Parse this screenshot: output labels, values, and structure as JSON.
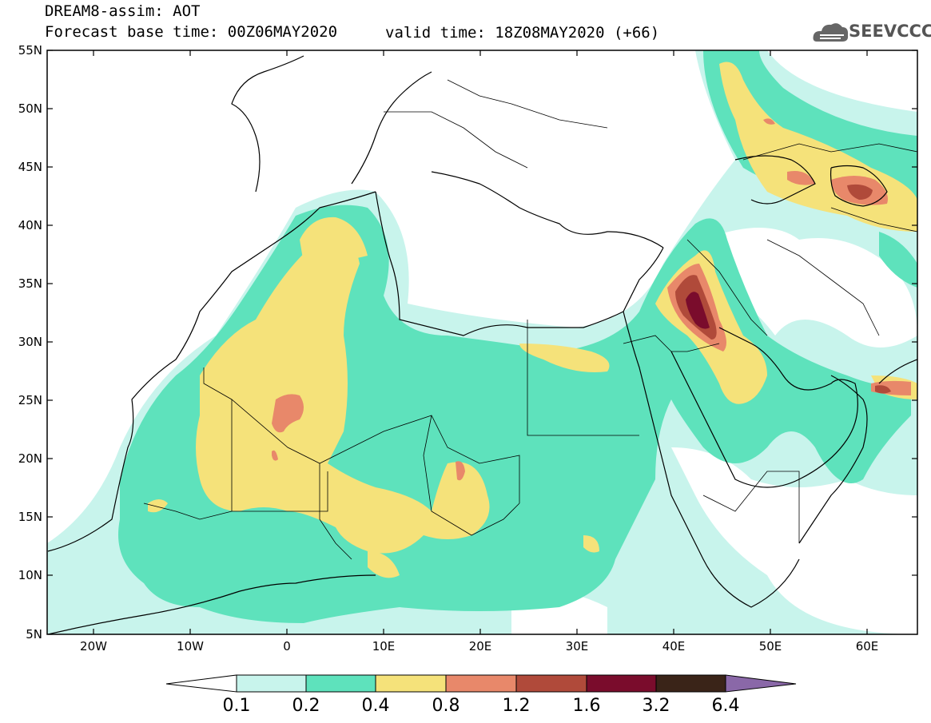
{
  "header": {
    "line1": "DREAM8-assim: AOT",
    "line2": "Forecast base time: 00Z06MAY2020",
    "valid": "valid time: 18Z08MAY2020 (+66)"
  },
  "logo": {
    "text": "SEEVCCC",
    "icon": "cloud-icon"
  },
  "axes": {
    "lat_labels": [
      "55N",
      "50N",
      "45N",
      "40N",
      "35N",
      "30N",
      "25N",
      "20N",
      "15N",
      "10N",
      "5N"
    ],
    "lon_labels": [
      "20W",
      "10W",
      "0",
      "10E",
      "20E",
      "30E",
      "40E",
      "50E",
      "60E"
    ],
    "lon_range": [
      -25,
      65
    ],
    "lat_range": [
      5,
      55
    ]
  },
  "colorbar": {
    "colors": [
      "#c8f4ec",
      "#5ee2bc",
      "#f5e27a",
      "#e8886a",
      "#b04a3a",
      "#7a0c2c",
      "#3a2418"
    ],
    "under_color": "#ffffff",
    "over_color": "#8a68a8",
    "labels": [
      "0.1",
      "0.2",
      "0.4",
      "0.8",
      "1.2",
      "1.6",
      "3.2",
      "6.4"
    ]
  }
}
